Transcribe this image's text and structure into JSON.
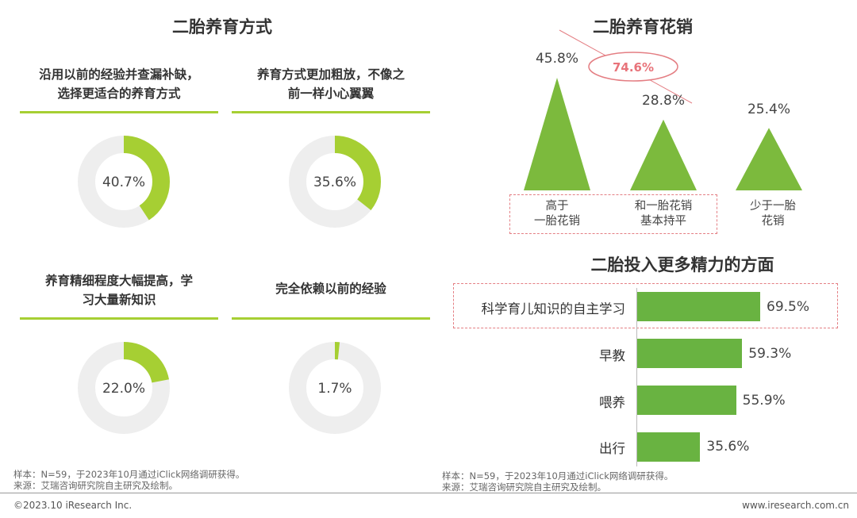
{
  "left_title": "二胎养育方式",
  "right_title": "二胎养育花销",
  "bars_title": "二胎投入更多精力的方面",
  "colors": {
    "accent": "#a6cf33",
    "track": "#eeeeee",
    "bar": "#69b341",
    "dashed": "#e47e83",
    "highlight_text": "#e8737a"
  },
  "chart_data": [
    {
      "type": "pie",
      "title": "二胎养育方式",
      "items": [
        {
          "label_lines": [
            "沿用以前的经验并查漏补缺，",
            "选择更适合的养育方式"
          ],
          "value": 40.7,
          "text": "40.7%"
        },
        {
          "label_lines": [
            "养育方式更加粗放，不像之",
            "前一样小心翼翼"
          ],
          "value": 35.6,
          "text": "35.6%"
        },
        {
          "label_lines": [
            "养育精细程度大幅提高，学",
            "习大量新知识"
          ],
          "value": 22.0,
          "text": "22.0%"
        },
        {
          "label_lines": [
            "完全依赖以前的经验"
          ],
          "value": 1.7,
          "text": "1.7%"
        }
      ]
    },
    {
      "type": "bar",
      "title": "二胎养育花销",
      "categories": [
        [
          "高于",
          "一胎花销"
        ],
        [
          "和一胎花销",
          "基本持平"
        ],
        [
          "少于一胎",
          "花销"
        ]
      ],
      "values": [
        45.8,
        28.8,
        25.4
      ],
      "value_texts": [
        "45.8%",
        "28.8%",
        "25.4%"
      ],
      "annotation": "74.6%"
    },
    {
      "type": "bar",
      "orientation": "horizontal",
      "title": "二胎投入更多精力的方面",
      "categories": [
        "科学育儿知识的自主学习",
        "早教",
        "喂养",
        "出行"
      ],
      "values": [
        69.5,
        59.3,
        55.9,
        35.6
      ],
      "value_texts": [
        "69.5%",
        "59.3%",
        "55.9%",
        "35.6%"
      ],
      "xlim": [
        0,
        100
      ]
    }
  ],
  "notes": {
    "left_sample": "样本：N=59，于2023年10月通过iClick网络调研获得。",
    "left_source": "来源：艾瑞咨询研究院自主研究及绘制。",
    "right_sample": "样本：N=59，于2023年10月通过iClick网络调研获得。",
    "right_source": "来源：艾瑞咨询研究院自主研究及绘制。"
  },
  "footer": {
    "copyright": "©2023.10 iResearch Inc.",
    "website": "www.iresearch.com.cn"
  }
}
